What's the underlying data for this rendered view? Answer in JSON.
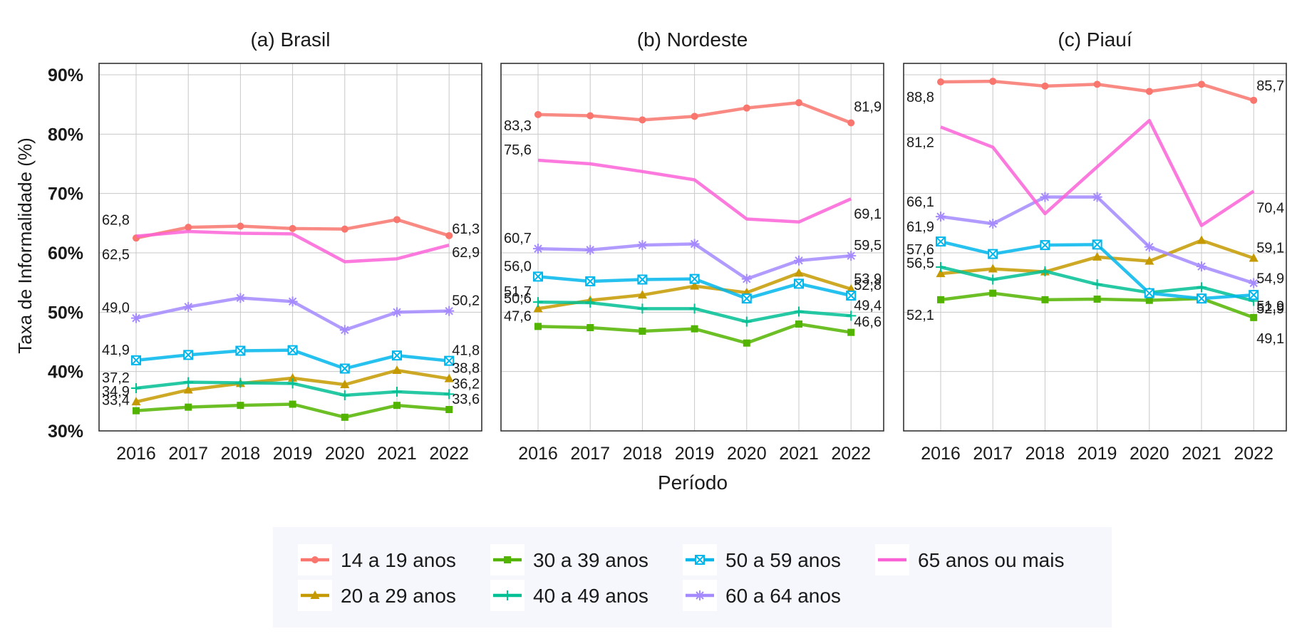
{
  "chart_data": {
    "type": "line",
    "ylabel": "Taxa de Informalidade (%)",
    "xlabel": "Período",
    "ylim": [
      30,
      90
    ],
    "yticks": [
      "30%",
      "40%",
      "50%",
      "60%",
      "70%",
      "80%",
      "90%"
    ],
    "ytick_values": [
      30,
      40,
      50,
      60,
      70,
      80,
      90
    ],
    "x": [
      "2016",
      "2017",
      "2018",
      "2019",
      "2020",
      "2021",
      "2022"
    ],
    "grid": true,
    "legend_position": "bottom",
    "series_meta": [
      {
        "name": "14 a 19 anos",
        "color": "#F8766D",
        "marker": "circle"
      },
      {
        "name": "20 a 29 anos",
        "color": "#C49A00",
        "marker": "triangle"
      },
      {
        "name": "30 a 39 anos",
        "color": "#53B400",
        "marker": "square"
      },
      {
        "name": "40 a 49 anos",
        "color": "#00C094",
        "marker": "plus"
      },
      {
        "name": "50 a 59 anos",
        "color": "#00B6EB",
        "marker": "boxed-x"
      },
      {
        "name": "60 a 64 anos",
        "color": "#A58AFF",
        "marker": "asterisk"
      },
      {
        "name": "65 anos ou mais",
        "color": "#FB61D7",
        "marker": "none"
      }
    ],
    "panels": [
      {
        "title": "(a) Brasil",
        "series": [
          {
            "name": "14 a 19 anos",
            "values": [
              62.5,
              64.3,
              64.5,
              64.1,
              64.0,
              65.6,
              62.9
            ],
            "labels": [
              "62,5",
              "62,9"
            ]
          },
          {
            "name": "20 a 29 anos",
            "values": [
              34.9,
              36.9,
              38.0,
              38.9,
              37.8,
              40.2,
              38.8
            ],
            "labels": [
              "34,9",
              "38,8"
            ]
          },
          {
            "name": "30 a 39 anos",
            "values": [
              33.4,
              34.0,
              34.3,
              34.5,
              32.3,
              34.3,
              33.6
            ],
            "labels": [
              "33,4",
              "33,6"
            ]
          },
          {
            "name": "40 a 49 anos",
            "values": [
              37.2,
              38.2,
              38.1,
              38.0,
              36.0,
              36.6,
              36.2
            ],
            "labels": [
              "37,2",
              "36,2"
            ]
          },
          {
            "name": "50 a 59 anos",
            "values": [
              41.9,
              42.8,
              43.5,
              43.6,
              40.5,
              42.7,
              41.8
            ],
            "labels": [
              "41,9",
              "41,8"
            ]
          },
          {
            "name": "60 a 64 anos",
            "values": [
              49.0,
              50.9,
              52.4,
              51.8,
              47.0,
              50.0,
              50.2
            ],
            "labels": [
              "49,0",
              "50,2"
            ]
          },
          {
            "name": "65 anos ou mais",
            "values": [
              62.8,
              63.6,
              63.3,
              63.2,
              58.5,
              59.0,
              61.3
            ],
            "labels": [
              "62,8",
              "61,3"
            ]
          }
        ]
      },
      {
        "title": "(b) Nordeste",
        "series": [
          {
            "name": "14 a 19 anos",
            "values": [
              83.3,
              83.1,
              82.4,
              83.0,
              84.4,
              85.3,
              81.9
            ],
            "labels": [
              "83,3",
              "81,9"
            ]
          },
          {
            "name": "20 a 29 anos",
            "values": [
              50.6,
              52.0,
              52.9,
              54.4,
              53.3,
              56.6,
              53.9
            ],
            "labels": [
              "50,6",
              "53,9"
            ]
          },
          {
            "name": "30 a 39 anos",
            "values": [
              47.6,
              47.4,
              46.8,
              47.2,
              44.8,
              48.0,
              46.6
            ],
            "labels": [
              "47,6",
              "46,6"
            ]
          },
          {
            "name": "40 a 49 anos",
            "values": [
              51.7,
              51.6,
              50.6,
              50.6,
              48.4,
              50.1,
              49.4
            ],
            "labels": [
              "51,7",
              "49,4"
            ]
          },
          {
            "name": "50 a 59 anos",
            "values": [
              56.0,
              55.2,
              55.5,
              55.6,
              52.3,
              54.8,
              52.8
            ],
            "labels": [
              "56,0",
              "52,8"
            ]
          },
          {
            "name": "60 a 64 anos",
            "values": [
              60.7,
              60.5,
              61.3,
              61.5,
              55.6,
              58.7,
              59.5
            ],
            "labels": [
              "60,7",
              "59,5"
            ]
          },
          {
            "name": "65 anos ou mais",
            "values": [
              75.6,
              75.0,
              73.7,
              72.3,
              65.7,
              65.2,
              69.1
            ],
            "labels": [
              "75,6",
              "69,1"
            ]
          }
        ]
      },
      {
        "title": "(c) Piauí",
        "series": [
          {
            "name": "14 a 19 anos",
            "values": [
              88.8,
              88.9,
              88.1,
              88.4,
              87.2,
              88.4,
              85.7
            ],
            "labels": [
              "88,8",
              "85,7"
            ]
          },
          {
            "name": "20 a 29 anos",
            "values": [
              56.5,
              57.3,
              56.8,
              59.3,
              58.6,
              62.1,
              59.1
            ],
            "labels": [
              "56,5",
              "59,1"
            ]
          },
          {
            "name": "30 a 39 anos",
            "values": [
              52.1,
              53.2,
              52.1,
              52.2,
              52.0,
              52.3,
              49.1
            ],
            "labels": [
              "52,1",
              "49,1"
            ]
          },
          {
            "name": "40 a 49 anos",
            "values": [
              57.6,
              55.5,
              56.9,
              54.7,
              53.3,
              54.2,
              51.9
            ],
            "labels": [
              "57,6",
              "51,9"
            ]
          },
          {
            "name": "50 a 59 anos",
            "values": [
              61.9,
              59.8,
              61.3,
              61.4,
              53.2,
              52.3,
              52.9
            ],
            "labels": [
              "61,9",
              "52,9"
            ]
          },
          {
            "name": "60 a 64 anos",
            "values": [
              66.1,
              64.9,
              69.4,
              69.4,
              61.0,
              57.7,
              54.9
            ],
            "labels": [
              "66,1",
              "54,9"
            ]
          },
          {
            "name": "65 anos ou mais",
            "values": [
              81.2,
              77.8,
              66.6,
              74.5,
              82.3,
              64.6,
              70.4
            ],
            "labels": [
              "81,2",
              "70,4"
            ]
          }
        ]
      }
    ]
  }
}
